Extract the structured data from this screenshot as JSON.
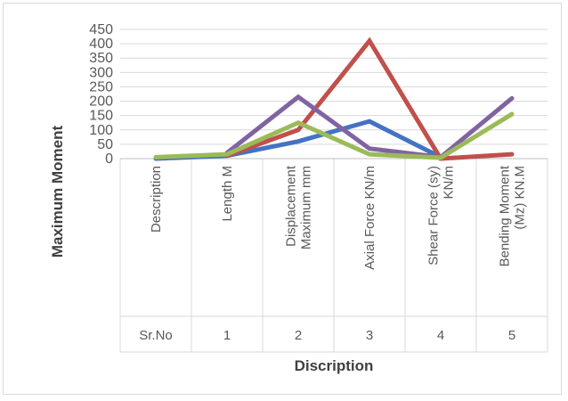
{
  "chart_data": {
    "type": "line",
    "xlabel": "Discription",
    "ylabel": "Maximum Moment",
    "ylim": [
      0,
      450
    ],
    "yticks": [
      0,
      50,
      100,
      150,
      200,
      250,
      300,
      350,
      400,
      450
    ],
    "grid": true,
    "legend": "none",
    "categories": [
      {
        "lines": [
          "Description"
        ],
        "table": "Sr.No"
      },
      {
        "lines": [
          "Length M"
        ],
        "table": "1"
      },
      {
        "lines": [
          "Displacement",
          "Maximum mm"
        ],
        "table": "2"
      },
      {
        "lines": [
          "Axial Force KN/m"
        ],
        "table": "3"
      },
      {
        "lines": [
          "Shear Force (sy)",
          "KN/m"
        ],
        "table": "4"
      },
      {
        "lines": [
          "Bending Moment",
          "(Mz) KN.M"
        ],
        "table": "5"
      }
    ],
    "series": [
      {
        "color": "#4472c4",
        "values": [
          0,
          10,
          60,
          130,
          5,
          null
        ]
      },
      {
        "color": "#c0504d",
        "values": [
          null,
          10,
          100,
          410,
          0,
          15
        ]
      },
      {
        "color": "#8064a2",
        "values": [
          null,
          20,
          215,
          35,
          5,
          210
        ]
      },
      {
        "color": "#9bbb59",
        "values": [
          5,
          15,
          125,
          15,
          3,
          155
        ]
      }
    ]
  }
}
